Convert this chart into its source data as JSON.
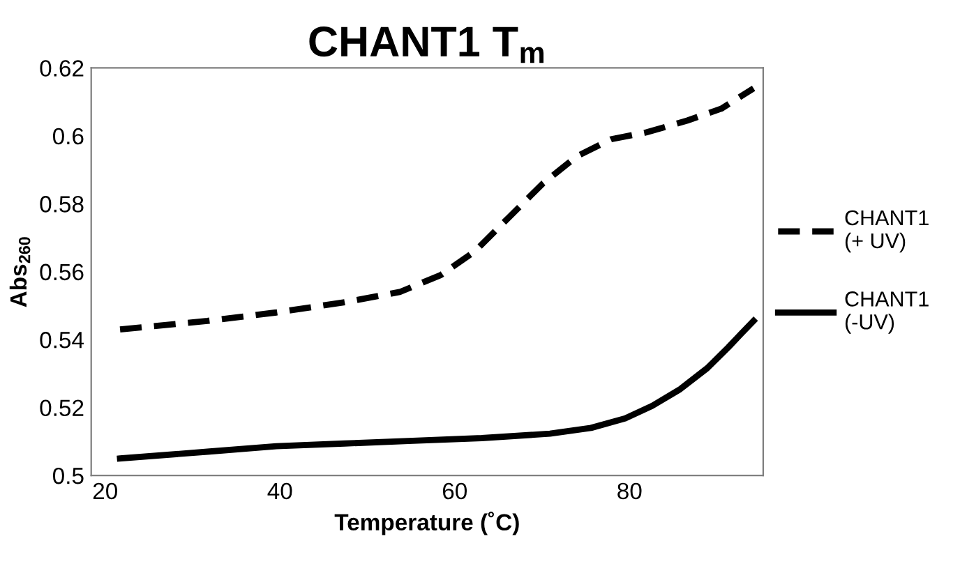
{
  "chart_data": {
    "type": "line",
    "title": "CHANT1 T$_{m}$",
    "xlabel": "Temperature (˚C)",
    "ylabel": "Abs$_{260}$",
    "xlim": [
      18.4,
      95.3
    ],
    "xticks": [
      20,
      40,
      60,
      80
    ],
    "ylim": [
      0.5,
      0.62
    ],
    "yticks": [
      0.5,
      0.52,
      0.54,
      0.56,
      0.58,
      0.6,
      0.62
    ],
    "grid": false,
    "legend": "right",
    "marker": "none",
    "series": [
      {
        "name": "CHANT1\n(+ UV)",
        "color": "#000000",
        "line_style": "dashed",
        "x": [
          21.7,
          31.7,
          39.6,
          47.4,
          53.7,
          58.4,
          62.3,
          66.2,
          70.1,
          74.0,
          77.9,
          81.9,
          86.6,
          90.5,
          94.2
        ],
        "values": [
          0.543,
          0.5455,
          0.548,
          0.551,
          0.554,
          0.559,
          0.566,
          0.576,
          0.586,
          0.594,
          0.599,
          0.601,
          0.6045,
          0.608,
          0.614
        ]
      },
      {
        "name": "CHANT1\n(-UV)",
        "color": "#000000",
        "line_style": "solid",
        "x": [
          21.7,
          31.7,
          39.6,
          47.4,
          55.2,
          63.1,
          70.9,
          75.6,
          79.5,
          82.6,
          85.8,
          88.9,
          91.3,
          92.8,
          94.2
        ],
        "values": [
          0.505,
          0.507,
          0.5086,
          0.5094,
          0.5102,
          0.511,
          0.5123,
          0.514,
          0.5168,
          0.5205,
          0.5254,
          0.5316,
          0.5377,
          0.5418,
          0.5455
        ]
      }
    ]
  }
}
